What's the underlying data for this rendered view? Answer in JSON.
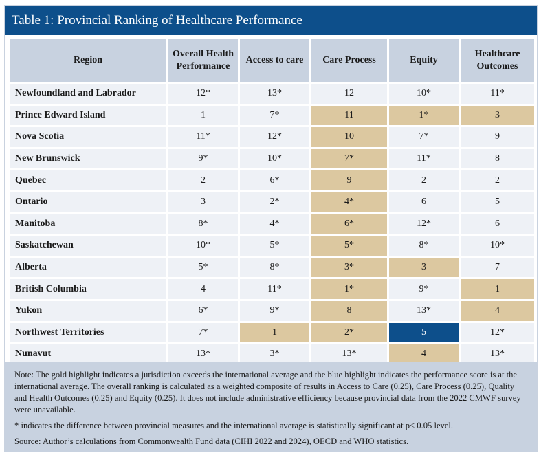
{
  "title": "Table 1: Provincial Ranking of Healthcare Performance",
  "columns": [
    "Region",
    "Overall Health Performance",
    "Access to care",
    "Care Process",
    "Equity",
    "Healthcare Outcomes"
  ],
  "rows": [
    {
      "region": "Newfoundland and Labrador",
      "cells": [
        {
          "v": "12*",
          "h": ""
        },
        {
          "v": "13*",
          "h": ""
        },
        {
          "v": "12",
          "h": ""
        },
        {
          "v": "10*",
          "h": ""
        },
        {
          "v": "11*",
          "h": ""
        }
      ]
    },
    {
      "region": "Prince Edward Island",
      "cells": [
        {
          "v": "1",
          "h": ""
        },
        {
          "v": "7*",
          "h": ""
        },
        {
          "v": "11",
          "h": "gold"
        },
        {
          "v": "1*",
          "h": "gold"
        },
        {
          "v": "3",
          "h": "gold"
        }
      ]
    },
    {
      "region": "Nova Scotia",
      "cells": [
        {
          "v": "11*",
          "h": ""
        },
        {
          "v": "12*",
          "h": ""
        },
        {
          "v": "10",
          "h": "gold"
        },
        {
          "v": "7*",
          "h": ""
        },
        {
          "v": "9",
          "h": ""
        }
      ]
    },
    {
      "region": "New Brunswick",
      "cells": [
        {
          "v": "9*",
          "h": ""
        },
        {
          "v": "10*",
          "h": ""
        },
        {
          "v": "7*",
          "h": "gold"
        },
        {
          "v": "11*",
          "h": ""
        },
        {
          "v": "8",
          "h": ""
        }
      ]
    },
    {
      "region": "Quebec",
      "cells": [
        {
          "v": "2",
          "h": ""
        },
        {
          "v": "6*",
          "h": ""
        },
        {
          "v": "9",
          "h": "gold"
        },
        {
          "v": "2",
          "h": ""
        },
        {
          "v": "2",
          "h": ""
        }
      ]
    },
    {
      "region": "Ontario",
      "cells": [
        {
          "v": "3",
          "h": ""
        },
        {
          "v": "2*",
          "h": ""
        },
        {
          "v": "4*",
          "h": "gold"
        },
        {
          "v": "6",
          "h": ""
        },
        {
          "v": "5",
          "h": ""
        }
      ]
    },
    {
      "region": "Manitoba",
      "cells": [
        {
          "v": "8*",
          "h": ""
        },
        {
          "v": "4*",
          "h": ""
        },
        {
          "v": "6*",
          "h": "gold"
        },
        {
          "v": "12*",
          "h": ""
        },
        {
          "v": "6",
          "h": ""
        }
      ]
    },
    {
      "region": "Saskatchewan",
      "cells": [
        {
          "v": "10*",
          "h": ""
        },
        {
          "v": "5*",
          "h": ""
        },
        {
          "v": "5*",
          "h": "gold"
        },
        {
          "v": "8*",
          "h": ""
        },
        {
          "v": "10*",
          "h": ""
        }
      ]
    },
    {
      "region": "Alberta",
      "cells": [
        {
          "v": "5*",
          "h": ""
        },
        {
          "v": "8*",
          "h": ""
        },
        {
          "v": "3*",
          "h": "gold"
        },
        {
          "v": "3",
          "h": "gold"
        },
        {
          "v": "7",
          "h": ""
        }
      ]
    },
    {
      "region": "British Columbia",
      "cells": [
        {
          "v": "4",
          "h": ""
        },
        {
          "v": "11*",
          "h": ""
        },
        {
          "v": "1*",
          "h": "gold"
        },
        {
          "v": "9*",
          "h": ""
        },
        {
          "v": "1",
          "h": "gold"
        }
      ]
    },
    {
      "region": "Yukon",
      "cells": [
        {
          "v": "6*",
          "h": ""
        },
        {
          "v": "9*",
          "h": ""
        },
        {
          "v": "8",
          "h": "gold"
        },
        {
          "v": "13*",
          "h": ""
        },
        {
          "v": "4",
          "h": "gold"
        }
      ]
    },
    {
      "region": "Northwest Territories",
      "cells": [
        {
          "v": "7*",
          "h": ""
        },
        {
          "v": "1",
          "h": "gold"
        },
        {
          "v": "2*",
          "h": "gold"
        },
        {
          "v": "5",
          "h": "blue"
        },
        {
          "v": "12*",
          "h": ""
        }
      ]
    },
    {
      "region": "Nunavut",
      "cells": [
        {
          "v": "13*",
          "h": ""
        },
        {
          "v": "3*",
          "h": ""
        },
        {
          "v": "13*",
          "h": ""
        },
        {
          "v": "4",
          "h": "gold"
        },
        {
          "v": "13*",
          "h": ""
        }
      ]
    }
  ],
  "notes": {
    "note": "Note: The gold highlight indicates a jurisdiction exceeds the international average and the blue highlight indicates the performance score is at the international average. The overall ranking is calculated as a weighted composite of results in Access to Care (0.25), Care Process (0.25), Quality and Health Outcomes (0.25) and Equity (0.25). It does not include administrative efficiency because provincial data from the 2022 CMWF survey were unavailable.",
    "asterisk": "* indicates the difference between provincial measures and the international average is statistically significant at p< 0.05 level.",
    "source": "Source: Author’s calculations from Commonwealth Fund data (CIHI 2022 and 2024), OECD and WHO statistics."
  },
  "colors": {
    "title_bar": "#0d4f8b",
    "header_bg": "#c8d2e0",
    "cell_bg": "#eef1f6",
    "gold": "#dcc8a0",
    "blue": "#0d4f8b"
  }
}
